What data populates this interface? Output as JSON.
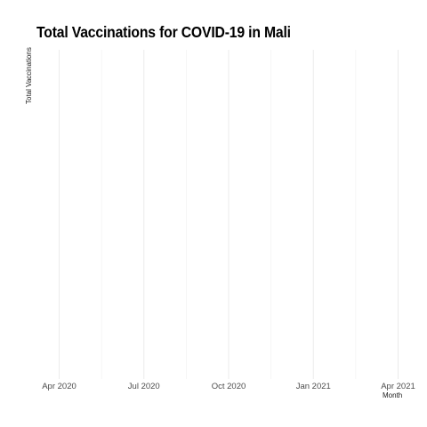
{
  "chart_data": {
    "type": "line",
    "title": "Total Vaccinations for COVID-19 in Mali",
    "xlabel": "Month",
    "ylabel": "Total Vaccinations",
    "x_ticks": [
      "Apr 2020",
      "Jul 2020",
      "Oct 2020",
      "Jan 2021",
      "Apr 2021"
    ],
    "xlim": [
      "2020-03-14",
      "2021-04-01"
    ],
    "series": [],
    "grid": true,
    "legend": "none"
  }
}
